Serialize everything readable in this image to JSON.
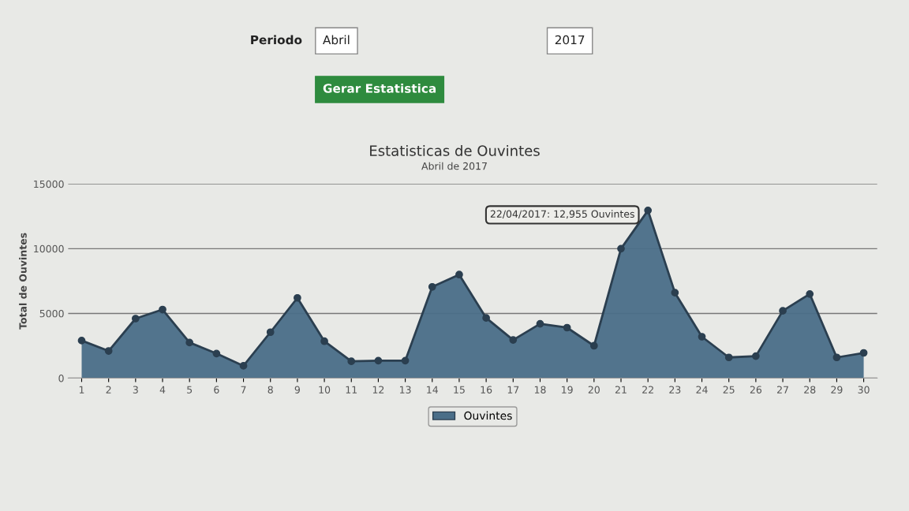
{
  "chart_data": {
    "type": "area",
    "title": "Estatisticas de Ouvintes",
    "subtitle": "Abril de 2017",
    "ylabel": "Total de Ouvintes",
    "categories": [
      "1",
      "2",
      "3",
      "4",
      "5",
      "6",
      "7",
      "8",
      "9",
      "10",
      "11",
      "12",
      "13",
      "14",
      "15",
      "16",
      "17",
      "18",
      "19",
      "20",
      "21",
      "22",
      "23",
      "24",
      "25",
      "26",
      "27",
      "28",
      "29",
      "30"
    ],
    "series": [
      {
        "name": "Ouvintes",
        "color": "#4a6e88",
        "values": [
          2900,
          2100,
          4600,
          5300,
          2750,
          1900,
          950,
          3550,
          6200,
          2850,
          1300,
          1350,
          1350,
          7050,
          8000,
          4650,
          2950,
          4200,
          3900,
          2500,
          10000,
          12955,
          6600,
          3200,
          1600,
          1700,
          5200,
          6500,
          1600,
          1950
        ]
      }
    ],
    "ylim": [
      0,
      15000
    ],
    "yticks": [
      0,
      5000,
      10000,
      15000
    ],
    "grid": "y",
    "legend": "bottom",
    "marker": "circle",
    "line_style": "solid",
    "annotations": [
      {
        "text": "22/04/2017: 12,955 Ouvintes",
        "x": "22",
        "y": 12955
      },
      "Periodo",
      "Abril",
      "2017",
      "Gerar Estatistica"
    ]
  }
}
